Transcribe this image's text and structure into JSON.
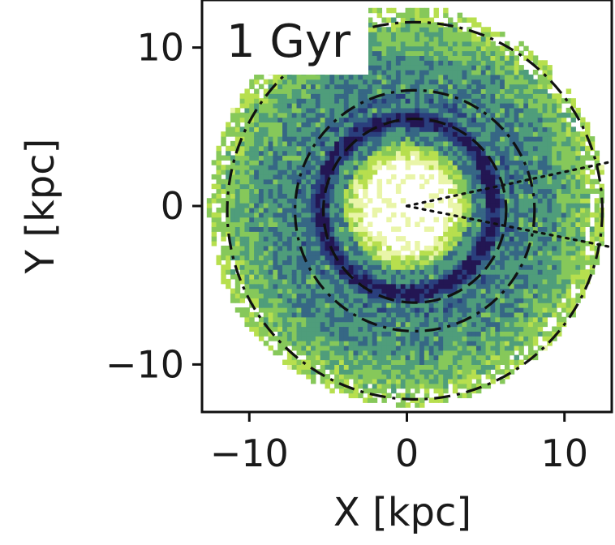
{
  "chart_data": {
    "type": "heatmap",
    "title": "",
    "panel_label": "1 Gyr",
    "xlabel": "X [kpc]",
    "ylabel": "Y [kpc]",
    "xlim": [
      -13,
      13
    ],
    "ylim": [
      -13,
      13
    ],
    "xticks": [
      {
        "value": -10,
        "label": "−10"
      },
      {
        "value": 0,
        "label": "0"
      },
      {
        "value": 10,
        "label": "10"
      }
    ],
    "yticks": [
      {
        "value": 10,
        "label": "10"
      },
      {
        "value": 0,
        "label": "0"
      },
      {
        "value": -10,
        "label": "−10"
      }
    ],
    "colormap": [
      "#ffffff",
      "#e9f5a8",
      "#b7df4e",
      "#86c85a",
      "#4f9d7b",
      "#366785",
      "#2a3f7d",
      "#231653"
    ],
    "density_rings_kpc": [
      {
        "radius": 5.5,
        "level": 7
      },
      {
        "radius": 6.8,
        "level": 5
      },
      {
        "radius": 8.5,
        "level": 4
      }
    ],
    "overlay_circles": [
      {
        "center": [
          0.5,
          -0.3
        ],
        "radius": 5.8,
        "style": "dashed"
      },
      {
        "center": [
          0.5,
          -0.3
        ],
        "radius": 7.6,
        "style": "dashdot"
      },
      {
        "center": [
          0.5,
          -0.3
        ],
        "radius": 11.9,
        "style": "dashdot"
      }
    ],
    "dotted_lines": [
      {
        "from": [
          0,
          0
        ],
        "to": [
          13,
          2.8
        ]
      },
      {
        "from": [
          0,
          0
        ],
        "to": [
          13,
          -2.6
        ]
      }
    ],
    "grid": false,
    "legend": "none"
  }
}
